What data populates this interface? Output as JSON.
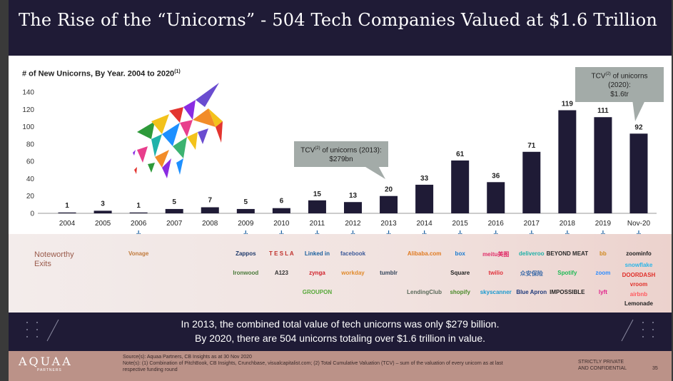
{
  "slide": {
    "title": "The Rise of the “Unicorns” - 504 Tech Companies Valued at $1.6 Trillion",
    "chart_title": "# of New Unicorns, By Year. 2004 to 2020",
    "chart_title_note": "(1)"
  },
  "callouts": {
    "c2013_line1": "TCV",
    "c2013_sup": "(2)",
    "c2013_line1b": " of unicorns (2013):",
    "c2013_line2": "$279bn",
    "c2020_line1": "TCV",
    "c2020_sup": "(2)",
    "c2020_line1b": " of unicorns (2020):",
    "c2020_line2": "$1.6tr"
  },
  "chart_data": {
    "type": "bar",
    "categories": [
      "2004",
      "2005",
      "2006",
      "2007",
      "2008",
      "2009",
      "2010",
      "2011",
      "2012",
      "2013",
      "2014",
      "2015",
      "2016",
      "2017",
      "2018",
      "2019",
      "Nov-20"
    ],
    "values": [
      1,
      3,
      1,
      5,
      7,
      5,
      6,
      15,
      13,
      20,
      33,
      61,
      36,
      71,
      119,
      111,
      92
    ],
    "ylim": [
      0,
      140
    ],
    "yticks": [
      0,
      20,
      40,
      60,
      80,
      100,
      120,
      140
    ],
    "bar_color": "#1f1b36",
    "grid": false
  },
  "exits": {
    "label_line1": "Noteworthy",
    "label_line2": "Exits",
    "logos": [
      {
        "col": 2,
        "row": 0,
        "text": "Vonage",
        "color": "#c07a3c"
      },
      {
        "col": 5,
        "row": 0,
        "text": "Zappos",
        "color": "#1f3a6b"
      },
      {
        "col": 5,
        "row": 1,
        "text": "Ironwood",
        "color": "#4a7a3a"
      },
      {
        "col": 6,
        "row": 0,
        "text": "T E S L A",
        "color": "#c0302a"
      },
      {
        "col": 6,
        "row": 1,
        "text": "A123",
        "color": "#333333"
      },
      {
        "col": 7,
        "row": 0,
        "text": "Linked in",
        "color": "#1a5f9e"
      },
      {
        "col": 7,
        "row": 1,
        "text": "zynga",
        "color": "#d0202a"
      },
      {
        "col": 7,
        "row": 2,
        "text": "GROUPON",
        "color": "#58a83a"
      },
      {
        "col": 8,
        "row": 0,
        "text": "facebook",
        "color": "#3b5998"
      },
      {
        "col": 8,
        "row": 1,
        "text": "workday",
        "color": "#e08a2a"
      },
      {
        "col": 9,
        "row": 1,
        "text": "tumblr",
        "color": "#35465c"
      },
      {
        "col": 10,
        "row": 0,
        "text": "Alibaba.com",
        "color": "#e07a20"
      },
      {
        "col": 10,
        "row": 2,
        "text": "LendingClub",
        "color": "#5a6a5a"
      },
      {
        "col": 11,
        "row": 0,
        "text": "box",
        "color": "#1a7ad0"
      },
      {
        "col": 11,
        "row": 1,
        "text": "Square",
        "color": "#222222"
      },
      {
        "col": 11,
        "row": 2,
        "text": "shopify",
        "color": "#4a8a2a"
      },
      {
        "col": 12,
        "row": 0,
        "text": "meitu美图",
        "color": "#e0306a"
      },
      {
        "col": 12,
        "row": 1,
        "text": "twilio",
        "color": "#e0303a"
      },
      {
        "col": 12,
        "row": 2,
        "text": "skyscanner",
        "color": "#1a9ad0"
      },
      {
        "col": 13,
        "row": 0,
        "text": "deliveroo",
        "color": "#20b0a8"
      },
      {
        "col": 13,
        "row": 1,
        "text": "众安保险",
        "color": "#3a6aa8"
      },
      {
        "col": 13,
        "row": 2,
        "text": "Blue Apron",
        "color": "#1f3a7a"
      },
      {
        "col": 14,
        "row": 0,
        "text": "BEYOND MEAT",
        "color": "#2a2a2a"
      },
      {
        "col": 14,
        "row": 1,
        "text": "Spotify",
        "color": "#1db954"
      },
      {
        "col": 14,
        "row": 2,
        "text": "IMPOSSIBLE",
        "color": "#222222"
      },
      {
        "col": 15,
        "row": 0,
        "text": "bb",
        "color": "#d08a20"
      },
      {
        "col": 15,
        "row": 1,
        "text": "zoom",
        "color": "#2d8cff"
      },
      {
        "col": 15,
        "row": 2,
        "text": "lyft",
        "color": "#e0208a"
      },
      {
        "col": 16,
        "row": 0,
        "text": "zoominfo",
        "color": "#222222"
      },
      {
        "col": 16,
        "row": 0.6,
        "text": "snowflake",
        "color": "#29b5e8"
      },
      {
        "col": 16,
        "row": 1.1,
        "text": "DOORDASH",
        "color": "#e0302a"
      },
      {
        "col": 16,
        "row": 1.6,
        "text": "vroom",
        "color": "#e0302a"
      },
      {
        "col": 16,
        "row": 2.1,
        "text": "airbnb",
        "color": "#ff5a5f"
      },
      {
        "col": 16,
        "row": 2.6,
        "text": "Lemonade",
        "color": "#222222"
      }
    ]
  },
  "summary": {
    "line1": "In 2013, the combined total value of tech unicorns was only $279 billion.",
    "line2": "By 2020, there are 504 unicorns totaling over $1.6 trillion in value."
  },
  "footer": {
    "brand": "AQUAA",
    "brand_sub": "PARTNERS",
    "sources": "Source(s): Aquaa Partners, CB Insights as at 30 Nov 2020",
    "notes": "Note(s): (1) Combination of PitchBook, CB Insights, Crunchbase, visualcapitalist.com; (2) Total Cumulative Valuation (TCV) – sum of the valuation of every unicorn as at last respective funding round",
    "confidential_line1": "STRICTLY PRIVATE",
    "confidential_line2": "AND CONFIDENTIAL",
    "page_number": "35"
  }
}
